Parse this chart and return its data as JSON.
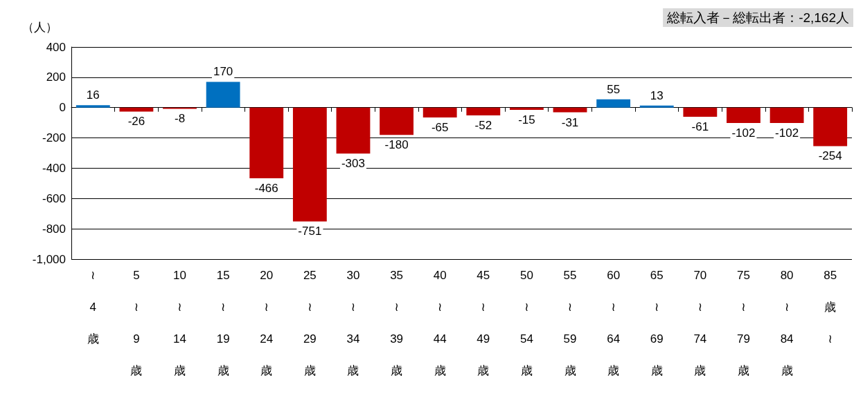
{
  "chart_data": {
    "type": "bar",
    "ylabel": "（人）",
    "annotations": [
      "総転入者－総転出者：-2,162人"
    ],
    "categories": [
      "≀\n4\n歳",
      "5\n≀\n9\n歳",
      "10\n≀\n14\n歳",
      "15\n≀\n19\n歳",
      "20\n≀\n24\n歳",
      "25\n≀\n29\n歳",
      "30\n≀\n34\n歳",
      "35\n≀\n39\n歳",
      "40\n≀\n44\n歳",
      "45\n≀\n49\n歳",
      "50\n≀\n54\n歳",
      "55\n≀\n59\n歳",
      "60\n≀\n64\n歳",
      "65\n≀\n69\n歳",
      "70\n≀\n74\n歳",
      "75\n≀\n79\n歳",
      "80\n≀\n84\n歳",
      "85\n歳\n≀"
    ],
    "values": [
      16,
      -26,
      -8,
      170,
      -466,
      -751,
      -303,
      -180,
      -65,
      -52,
      -15,
      -31,
      55,
      13,
      -61,
      -102,
      -102,
      -254
    ],
    "colors": [
      "#0070c0",
      "#c00000",
      "#c00000",
      "#0070c0",
      "#c00000",
      "#c00000",
      "#c00000",
      "#c00000",
      "#c00000",
      "#c00000",
      "#c00000",
      "#c00000",
      "#0070c0",
      "#0070c0",
      "#c00000",
      "#c00000",
      "#c00000",
      "#c00000"
    ],
    "ylim": [
      -1000,
      400
    ],
    "yticks": [
      {
        "value": -1000,
        "label": "-1,000"
      },
      -800,
      -600,
      -400,
      -200,
      0,
      200,
      400
    ],
    "grid": "y",
    "data_labels": true
  }
}
